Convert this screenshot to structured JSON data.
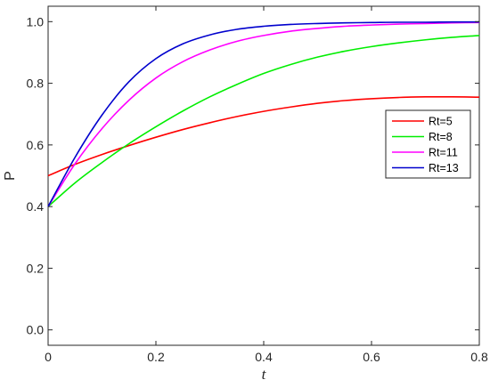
{
  "chart_data": {
    "type": "line",
    "xlabel": "t",
    "ylabel": "P",
    "xlim": [
      0,
      0.8
    ],
    "ylim": [
      -0.05,
      1.05
    ],
    "x_ticks": [
      0,
      0.2,
      0.4,
      0.6,
      0.8
    ],
    "x_tick_labels": [
      "0",
      "0.2",
      "0.4",
      "0.6",
      "0.8"
    ],
    "y_ticks": [
      0,
      0.2,
      0.4,
      0.6,
      0.8,
      1.0
    ],
    "y_tick_labels": [
      "0.0",
      "0.2",
      "0.4",
      "0.6",
      "0.8",
      "1.0"
    ],
    "grid": false,
    "legend_position": "right",
    "x": [
      0,
      0.05,
      0.1,
      0.15,
      0.2,
      0.25,
      0.3,
      0.35,
      0.4,
      0.45,
      0.5,
      0.55,
      0.6,
      0.65,
      0.7,
      0.75,
      0.8
    ],
    "series": [
      {
        "name": "Rt=5",
        "color": "#ff0000",
        "values": [
          0.5,
          0.537,
          0.569,
          0.598,
          0.625,
          0.65,
          0.672,
          0.692,
          0.709,
          0.723,
          0.735,
          0.744,
          0.75,
          0.754,
          0.756,
          0.756,
          0.755
        ]
      },
      {
        "name": "Rt=8",
        "color": "#00ee00",
        "values": [
          0.4,
          0.477,
          0.543,
          0.604,
          0.659,
          0.71,
          0.756,
          0.796,
          0.832,
          0.861,
          0.885,
          0.904,
          0.919,
          0.931,
          0.941,
          0.949,
          0.955
        ]
      },
      {
        "name": "Rt=11",
        "color": "#ff00ff",
        "values": [
          0.4,
          0.539,
          0.653,
          0.745,
          0.817,
          0.87,
          0.908,
          0.936,
          0.955,
          0.969,
          0.978,
          0.985,
          0.989,
          0.992,
          0.994,
          0.996,
          0.997
        ]
      },
      {
        "name": "Rt=13",
        "color": "#0000cd",
        "values": [
          0.4,
          0.56,
          0.697,
          0.805,
          0.88,
          0.928,
          0.957,
          0.975,
          0.985,
          0.991,
          0.994,
          0.996,
          0.997,
          0.998,
          0.998,
          0.999,
          0.999
        ]
      }
    ]
  }
}
